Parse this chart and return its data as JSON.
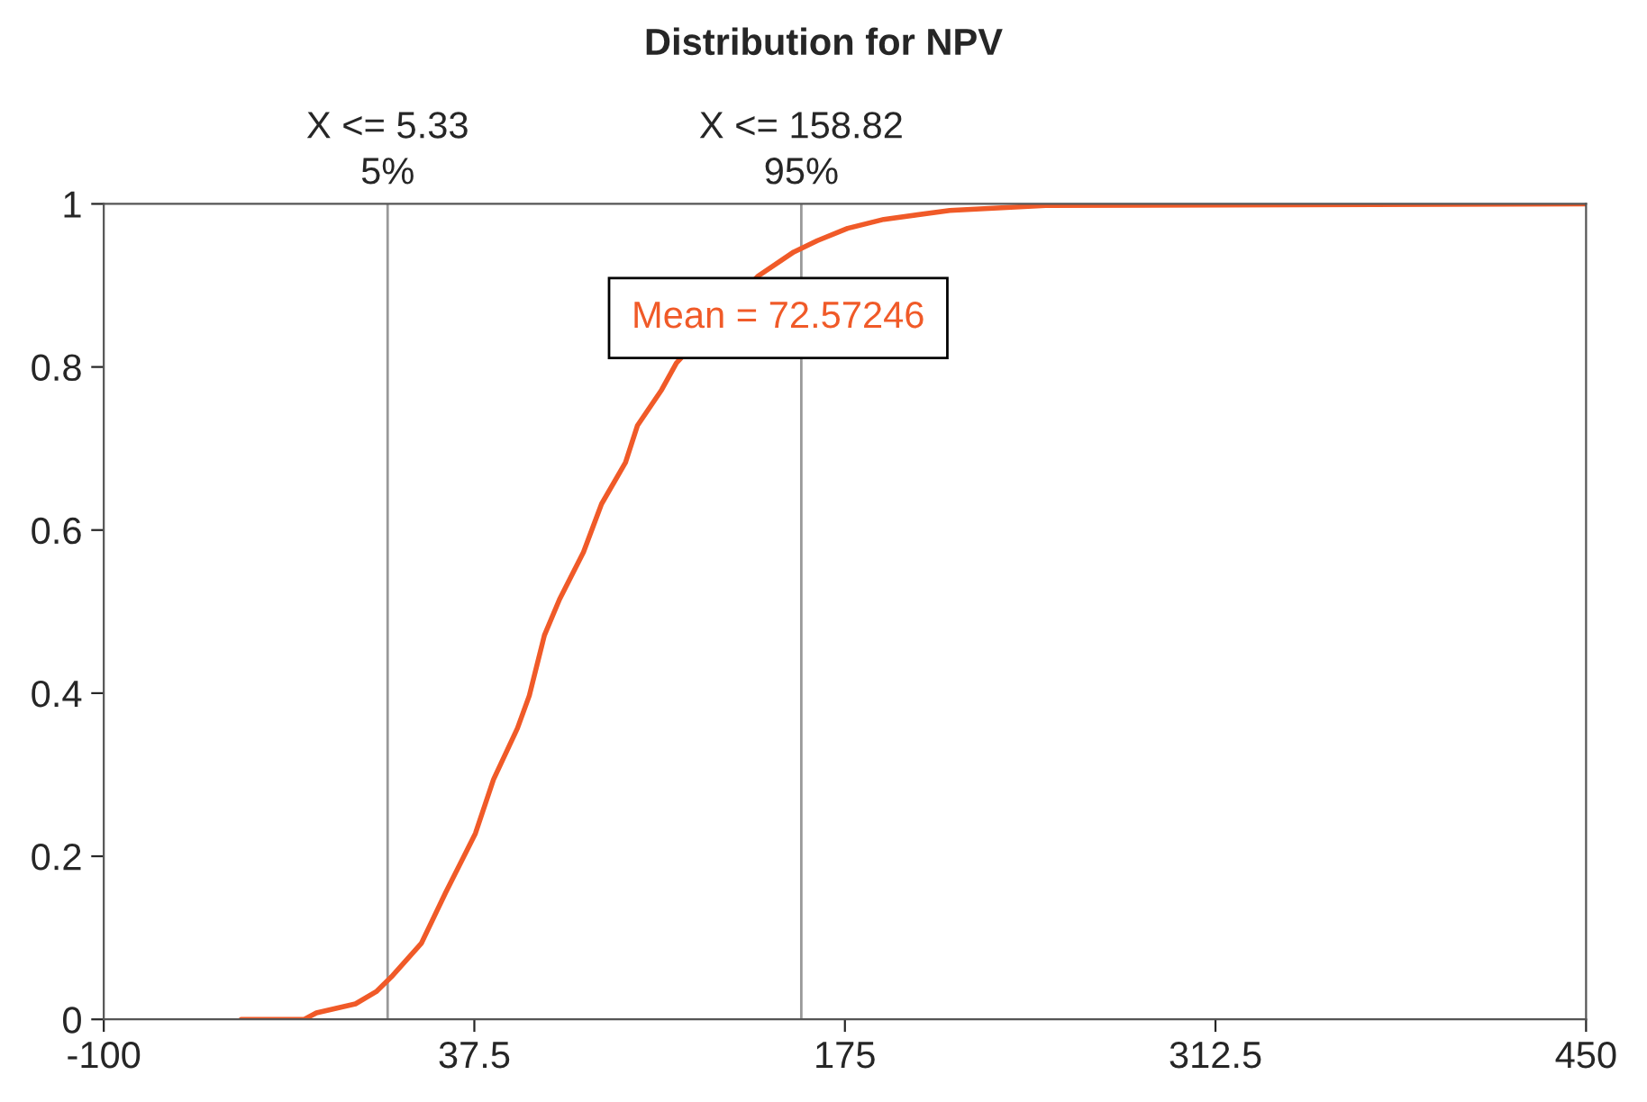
{
  "chart_data": {
    "type": "line",
    "title": "Distribution for NPV",
    "x": [
      -49,
      -25.6,
      -21.1,
      -6.6,
      1.1,
      6.7,
      17.8,
      26.8,
      37.9,
      44.6,
      53.5,
      57.9,
      63.5,
      69.1,
      78.0,
      84.7,
      93.6,
      98.0,
      107.0,
      112.5,
      142.6,
      156.0,
      164.8,
      176.0,
      189.4,
      213.9,
      249.5,
      450
    ],
    "series": [
      {
        "color": "#f05a28",
        "values": [
          0,
          0,
          0.008,
          0.019,
          0.034,
          0.052,
          0.093,
          0.155,
          0.228,
          0.294,
          0.357,
          0.397,
          0.471,
          0.515,
          0.573,
          0.632,
          0.683,
          0.728,
          0.772,
          0.805,
          0.911,
          0.941,
          0.955,
          0.97,
          0.981,
          0.992,
          0.998,
          1
        ]
      }
    ],
    "xlim": [
      -100,
      450
    ],
    "xticks": [
      -100,
      37.5,
      175,
      312.5,
      450
    ],
    "ylim": [
      0,
      1
    ],
    "yticks": [
      0,
      0.2,
      0.4,
      0.6,
      0.8,
      1
    ],
    "ref_lines": [
      {
        "axis": "x",
        "value": 5.33,
        "label": "X <= 5.33\n5%",
        "color": "#999999"
      },
      {
        "axis": "x",
        "value": 158.82,
        "label": "X <= 158.82\n95%",
        "color": "#999999"
      }
    ],
    "annotations": [
      "Mean = 72.57246"
    ],
    "grid": false,
    "legend": false,
    "marker": "none",
    "line_style": "solid"
  }
}
